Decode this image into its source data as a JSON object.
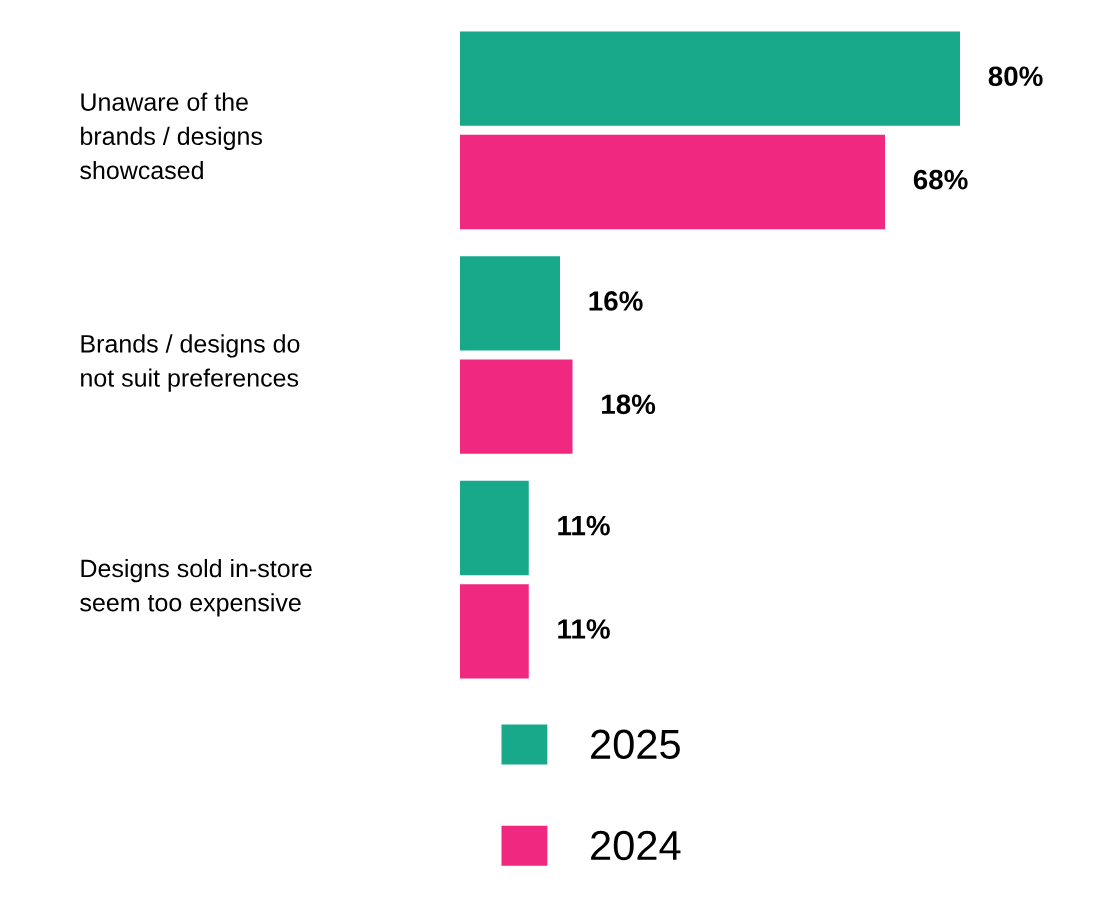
{
  "chart_data": {
    "type": "bar",
    "orientation": "horizontal",
    "categories": [
      "Unaware of the\nbrands / designs\nshowcased",
      "Brands / designs do\nnot suit preferences",
      "Designs sold in-store\nseem too expensive"
    ],
    "series": [
      {
        "name": "2025",
        "color": "#17a98a",
        "values": [
          80,
          16,
          11
        ],
        "value_labels": [
          "80%",
          "16%",
          "11%"
        ]
      },
      {
        "name": "2024",
        "color": "#f0287f",
        "values": [
          68,
          18,
          11
        ],
        "value_labels": [
          "68%",
          "18%",
          "11%"
        ]
      }
    ],
    "legend": "bottom",
    "grid": false
  }
}
